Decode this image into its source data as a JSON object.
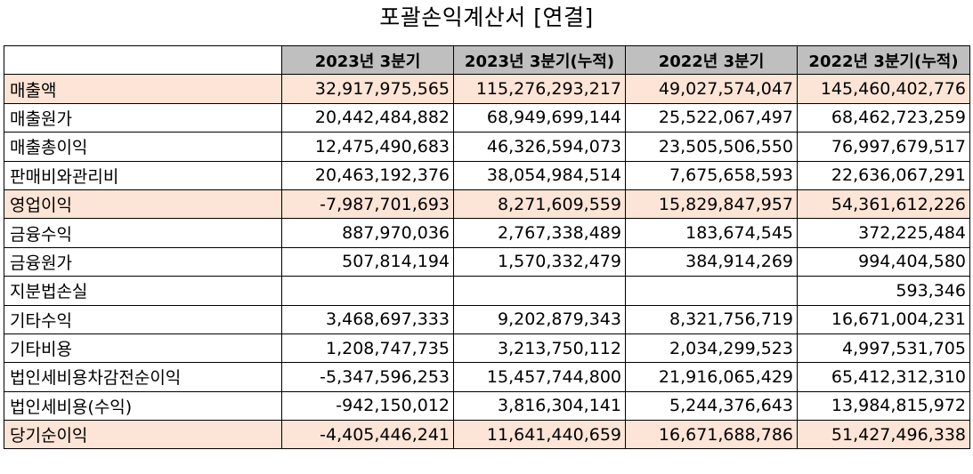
{
  "title": "포괄손익계산서 [연결]",
  "table": {
    "columns": [
      "",
      "2023년 3분기",
      "2023년 3분기(누적)",
      "2022년 3분기",
      "2022년 3분기(누적)"
    ],
    "highlight_color": "#fce4d6",
    "header_color": "#bfbfbf",
    "rows": [
      {
        "label": "매출액",
        "highlight": true,
        "values": [
          "32,917,975,565",
          "115,276,293,217",
          "49,027,574,047",
          "145,460,402,776"
        ]
      },
      {
        "label": "매출원가",
        "highlight": false,
        "values": [
          "20,442,484,882",
          "68,949,699,144",
          "25,522,067,497",
          "68,462,723,259"
        ]
      },
      {
        "label": "매출총이익",
        "highlight": false,
        "values": [
          "12,475,490,683",
          "46,326,594,073",
          "23,505,506,550",
          "76,997,679,517"
        ]
      },
      {
        "label": "판매비와관리비",
        "highlight": false,
        "values": [
          "20,463,192,376",
          "38,054,984,514",
          "7,675,658,593",
          "22,636,067,291"
        ]
      },
      {
        "label": "영업이익",
        "highlight": true,
        "values": [
          "-7,987,701,693",
          "8,271,609,559",
          "15,829,847,957",
          "54,361,612,226"
        ]
      },
      {
        "label": "금융수익",
        "highlight": false,
        "values": [
          "887,970,036",
          "2,767,338,489",
          "183,674,545",
          "372,225,484"
        ]
      },
      {
        "label": "금융원가",
        "highlight": false,
        "values": [
          "507,814,194",
          "1,570,332,479",
          "384,914,269",
          "994,404,580"
        ]
      },
      {
        "label": "지분법손실",
        "highlight": false,
        "values": [
          "",
          "",
          "",
          "593,346"
        ]
      },
      {
        "label": "기타수익",
        "highlight": false,
        "values": [
          "3,468,697,333",
          "9,202,879,343",
          "8,321,756,719",
          "16,671,004,231"
        ]
      },
      {
        "label": "기타비용",
        "highlight": false,
        "values": [
          "1,208,747,735",
          "3,213,750,112",
          "2,034,299,523",
          "4,997,531,705"
        ]
      },
      {
        "label": "법인세비용차감전순이익",
        "highlight": false,
        "values": [
          "-5,347,596,253",
          "15,457,744,800",
          "21,916,065,429",
          "65,412,312,310"
        ]
      },
      {
        "label": "법인세비용(수익)",
        "highlight": false,
        "values": [
          "-942,150,012",
          "3,816,304,141",
          "5,244,376,643",
          "13,984,815,972"
        ]
      },
      {
        "label": "당기순이익",
        "highlight": true,
        "values": [
          "-4,405,446,241",
          "11,641,440,659",
          "16,671,688,786",
          "51,427,496,338"
        ]
      }
    ]
  }
}
